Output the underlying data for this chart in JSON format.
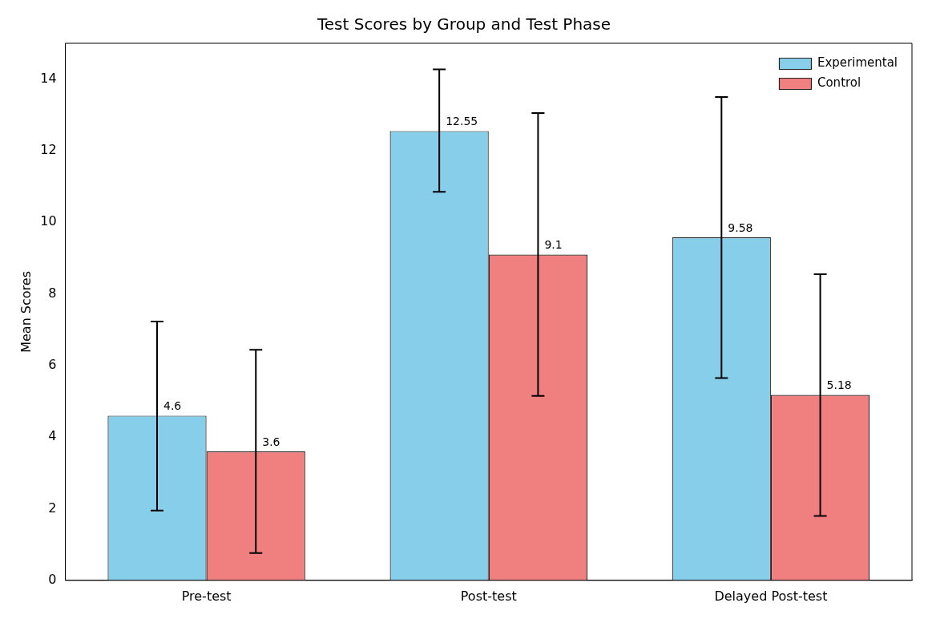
{
  "chart_data": {
    "type": "bar",
    "title": "Test Scores by Group and Test Phase",
    "ylabel": "Mean Scores",
    "categories": [
      "Pre-test",
      "Post-test",
      "Delayed Post-test"
    ],
    "series": [
      {
        "name": "Experimental",
        "color": "#87ceeb",
        "values": [
          4.6,
          12.55,
          9.58
        ],
        "errors": [
          [
            1.95,
            7.23
          ],
          [
            10.85,
            14.27
          ],
          [
            5.65,
            13.5
          ]
        ]
      },
      {
        "name": "Control",
        "color": "#f08080",
        "values": [
          3.6,
          9.1,
          5.18
        ],
        "errors": [
          [
            0.76,
            6.44
          ],
          [
            5.15,
            13.05
          ],
          [
            1.8,
            8.55
          ]
        ]
      }
    ],
    "ylim": [
      0,
      15
    ],
    "yticks": [
      0,
      2,
      4,
      6,
      8,
      10,
      12,
      14
    ],
    "grid": false,
    "legend": "top right",
    "data_labels": true
  }
}
